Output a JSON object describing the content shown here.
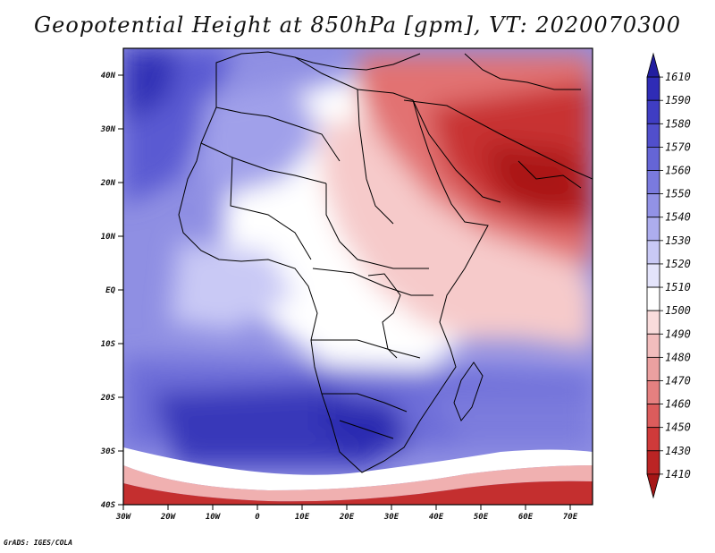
{
  "title": "Geopotential Height at 850hPa [gpm], VT: 2020070300",
  "credit": "GrADS: IGES/COLA",
  "map": {
    "x_ticks": [
      "30W",
      "20W",
      "10W",
      "0",
      "10E",
      "20E",
      "30E",
      "40E",
      "50E",
      "60E",
      "70E"
    ],
    "y_ticks": [
      "40N",
      "30N",
      "20N",
      "10N",
      "EQ",
      "10S",
      "20S",
      "30S",
      "40S"
    ]
  },
  "colorbar": {
    "levels": [
      "1610",
      "1590",
      "1580",
      "1570",
      "1560",
      "1550",
      "1540",
      "1530",
      "1520",
      "1510",
      "1500",
      "1490",
      "1480",
      "1470",
      "1460",
      "1450",
      "1430",
      "1410"
    ],
    "colors": [
      "#221ea0",
      "#2f2cb6",
      "#3f3dc3",
      "#514fcc",
      "#6565d6",
      "#7a7ade",
      "#9292e6",
      "#adadee",
      "#c9c9f5",
      "#e4e4fb",
      "#ffffff",
      "#f9dcdc",
      "#f2bdbd",
      "#eba0a0",
      "#e58080",
      "#dc5c5c",
      "#cf3a3a",
      "#bb2424",
      "#a61616"
    ]
  }
}
